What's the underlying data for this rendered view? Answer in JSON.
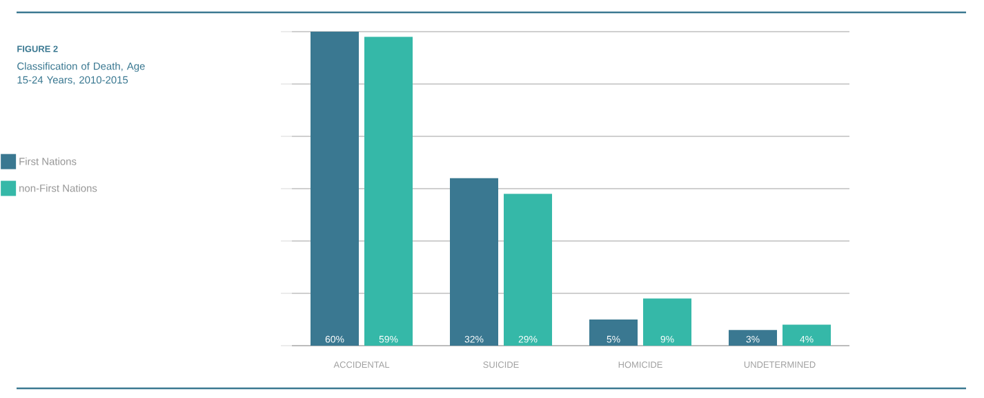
{
  "chart_data": {
    "type": "bar",
    "title": "FIGURE 2",
    "subtitle": "Classification of Death, Age 15-24 Years, 2010-2015",
    "categories": [
      "ACCIDENTAL",
      "SUICIDE",
      "HOMICIDE",
      "UNDETERMINED"
    ],
    "series": [
      {
        "name": "First Nations",
        "color": "#3a7891",
        "values": [
          60,
          32,
          5,
          3
        ],
        "value_labels": [
          "60%",
          "32%",
          "5%",
          "3%"
        ]
      },
      {
        "name": "non-First Nations",
        "color": "#35b8a8",
        "values": [
          59,
          29,
          9,
          4
        ],
        "value_labels": [
          "59%",
          "29%",
          "9%",
          "4%"
        ]
      }
    ],
    "ylim": [
      0,
      60
    ],
    "yticks": [
      {
        "value": 0,
        "label": null
      },
      {
        "value": 10,
        "label": null
      },
      {
        "value": 20,
        "label": null
      },
      {
        "value": 30,
        "label": null
      },
      {
        "value": 40,
        "label": null
      },
      {
        "value": 50,
        "label": null
      },
      {
        "value": 60,
        "label": null
      }
    ],
    "grid": "y",
    "legend": "left"
  }
}
